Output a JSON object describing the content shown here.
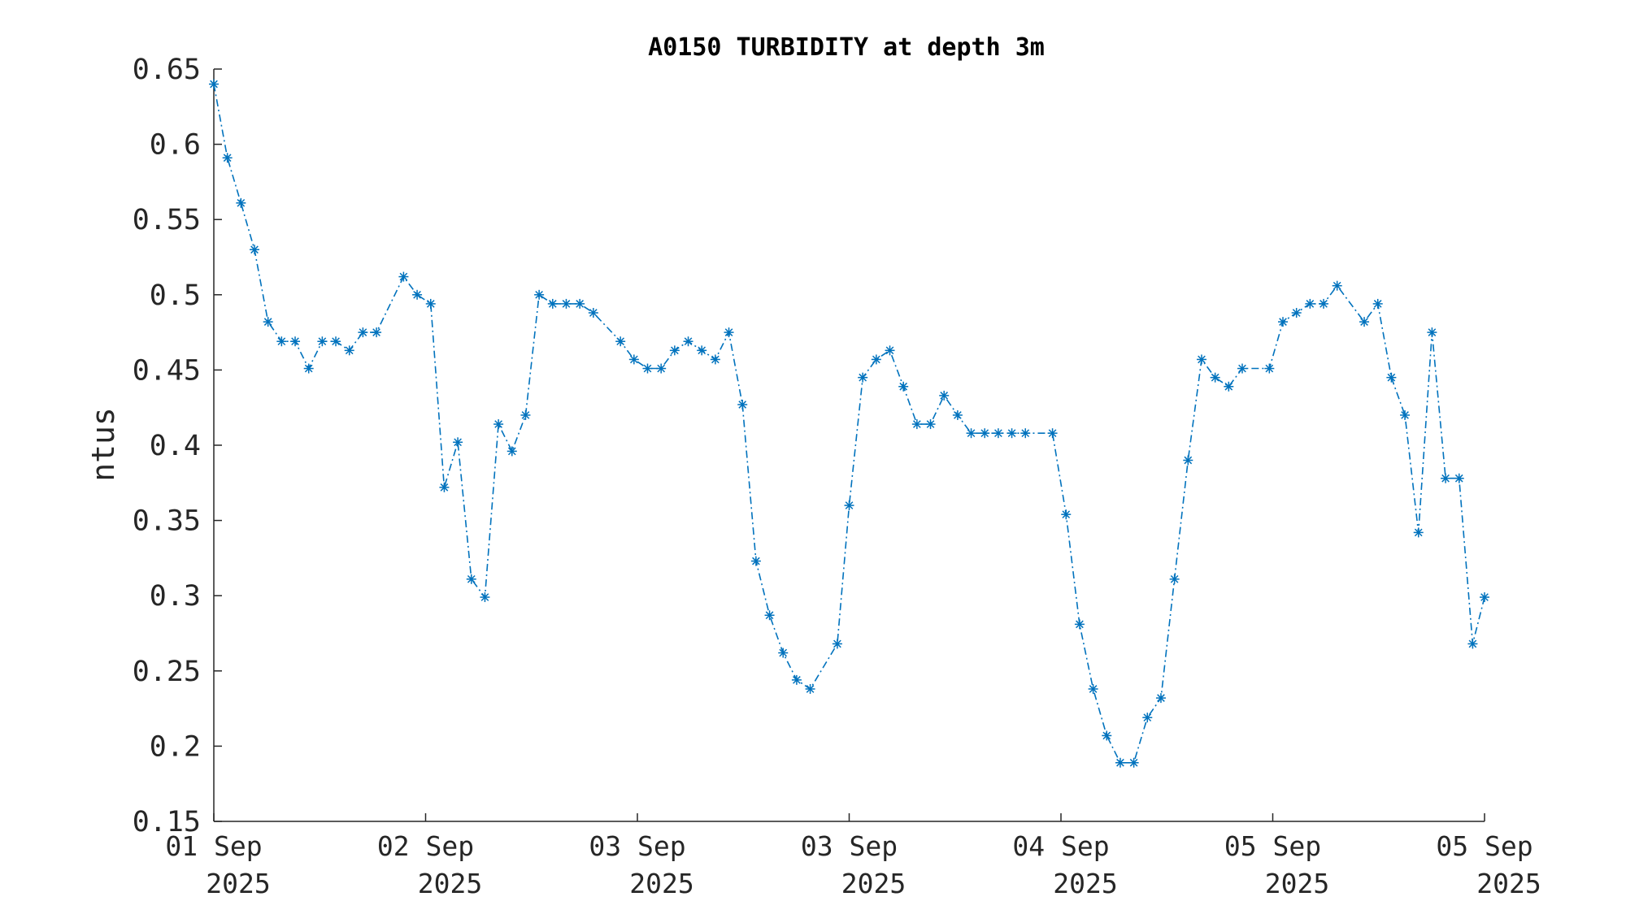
{
  "chart_data": {
    "type": "line",
    "title": "A0150 TURBIDITY at depth 3m",
    "ylabel": "ntus",
    "xlabel": "",
    "ylim": [
      0.15,
      0.65
    ],
    "xlim": [
      0,
      6
    ],
    "yticks": [
      0.15,
      0.2,
      0.25,
      0.3,
      0.35,
      0.4,
      0.45,
      0.5,
      0.55,
      0.6,
      0.65
    ],
    "ytick_labels": [
      "0.15",
      "0.2",
      "0.25",
      "0.3",
      "0.35",
      "0.4",
      "0.45",
      "0.5",
      "0.55",
      "0.6",
      "0.65"
    ],
    "xticks": [
      {
        "x": 0,
        "line1": "01 Sep",
        "line2": "2025"
      },
      {
        "x": 1,
        "line1": "02 Sep",
        "line2": "2025"
      },
      {
        "x": 2,
        "line1": "03 Sep",
        "line2": "2025"
      },
      {
        "x": 3,
        "line1": "03 Sep",
        "line2": "2025"
      },
      {
        "x": 4,
        "line1": "04 Sep",
        "line2": "2025"
      },
      {
        "x": 5,
        "line1": "05 Sep",
        "line2": "2025"
      },
      {
        "x": 6,
        "line1": "05 Sep",
        "line2": "2025"
      }
    ],
    "grid": false,
    "line_style": "dash-dot",
    "marker": "asterisk",
    "color": "#0072bd",
    "series": [
      {
        "x": [
          0.0,
          0.064,
          0.128,
          0.192,
          0.256,
          0.32,
          0.384,
          0.448,
          0.512,
          0.576,
          0.64,
          0.704,
          0.768,
          0.896,
          0.96,
          1.024,
          1.088,
          1.152,
          1.216,
          1.28,
          1.344,
          1.408,
          1.472,
          1.536,
          1.6,
          1.664,
          1.728,
          1.792,
          1.92,
          1.984,
          2.048,
          2.112,
          2.176,
          2.24,
          2.304,
          2.368,
          2.432,
          2.496,
          2.56,
          2.624,
          2.688,
          2.752,
          2.816,
          2.944,
          3.0,
          3.064,
          3.128,
          3.192,
          3.256,
          3.32,
          3.384,
          3.448,
          3.512,
          3.576,
          3.64,
          3.704,
          3.768,
          3.832,
          3.96,
          4.024,
          4.088,
          4.152,
          4.216,
          4.28,
          4.344,
          4.408,
          4.472,
          4.536,
          4.6,
          4.664,
          4.728,
          4.792,
          4.856,
          4.984,
          5.048,
          5.112,
          5.176,
          5.24,
          5.304,
          5.432,
          5.496,
          5.56,
          5.624,
          5.688,
          5.752,
          5.816,
          5.88,
          5.944,
          6.0
        ],
        "y": [
          0.64,
          0.591,
          0.561,
          0.53,
          0.482,
          0.469,
          0.469,
          0.451,
          0.469,
          0.469,
          0.463,
          0.475,
          0.475,
          0.512,
          0.5,
          0.494,
          0.372,
          0.402,
          0.311,
          0.299,
          0.414,
          0.396,
          0.42,
          0.5,
          0.494,
          0.494,
          0.494,
          0.488,
          0.469,
          0.457,
          0.451,
          0.451,
          0.463,
          0.469,
          0.463,
          0.457,
          0.475,
          0.427,
          0.323,
          0.287,
          0.262,
          0.244,
          0.238,
          0.268,
          0.36,
          0.445,
          0.457,
          0.463,
          0.439,
          0.414,
          0.414,
          0.433,
          0.42,
          0.408,
          0.408,
          0.408,
          0.408,
          0.408,
          0.408,
          0.354,
          0.281,
          0.238,
          0.207,
          0.189,
          0.189,
          0.219,
          0.232,
          0.311,
          0.39,
          0.457,
          0.445,
          0.439,
          0.451,
          0.451,
          0.482,
          0.488,
          0.494,
          0.494,
          0.506,
          0.482,
          0.494,
          0.445,
          0.42,
          0.342,
          0.475,
          0.378,
          0.378,
          0.268,
          0.299
        ]
      }
    ]
  }
}
